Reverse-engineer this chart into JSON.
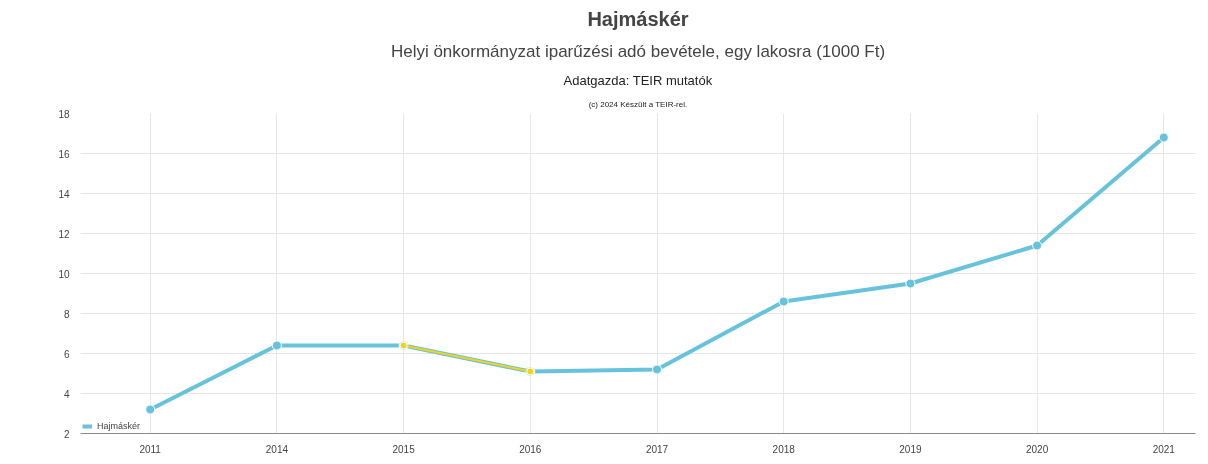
{
  "chart_data": {
    "type": "line",
    "title": "Hajmáskér",
    "subtitle": "Helyi önkormányzat iparűzési adó bevétele, egy lakosra (1000 Ft)",
    "annotations": [
      "Adatgazda: TEIR mutatók",
      "(c) 2024 Készült a TEIR-rel."
    ],
    "categories": [
      "2011",
      "2014",
      "2015",
      "2016",
      "2017",
      "2018",
      "2019",
      "2020",
      "2021"
    ],
    "series": [
      {
        "name": "Hajmáskér",
        "color": "#67c2dc",
        "values": [
          3.2,
          6.4,
          6.4,
          5.1,
          5.2,
          8.6,
          9.5,
          11.4,
          16.8
        ]
      },
      {
        "color": "#f5d31c",
        "values": [
          null,
          null,
          6.4,
          5.1,
          null,
          null,
          null,
          null,
          null
        ]
      }
    ],
    "ylim": [
      2,
      18
    ],
    "yticks": [
      2,
      4,
      6,
      8,
      10,
      12,
      14,
      16,
      18
    ],
    "grid": true,
    "legend": "bottom left",
    "marker": "circle",
    "line_style": "solid"
  }
}
